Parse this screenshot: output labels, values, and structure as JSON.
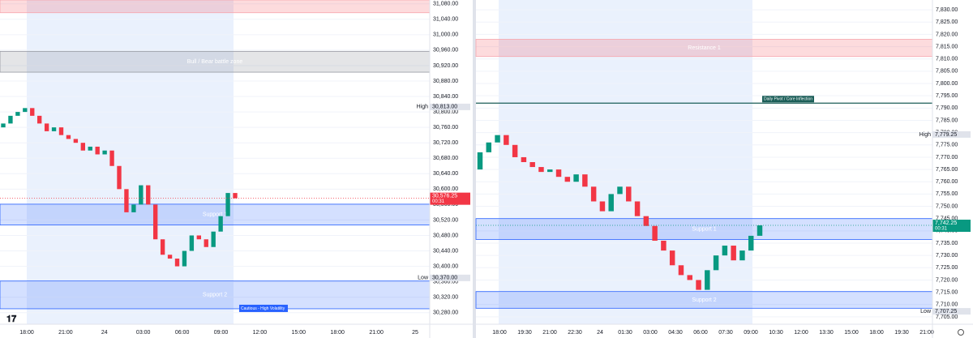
{
  "chart_data": [
    {
      "type": "candlestick",
      "ylim": [
        30250,
        31090
      ],
      "yticks": [
        {
          "value": 31080,
          "label": "31,080.00"
        },
        {
          "value": 31040,
          "label": "31,040.00"
        },
        {
          "value": 31000,
          "label": "31,000.00"
        },
        {
          "value": 30960,
          "label": "30,960.00"
        },
        {
          "value": 30920,
          "label": "30,920.00"
        },
        {
          "value": 30880,
          "label": "30,880.00"
        },
        {
          "value": 30840,
          "label": "30,840.00"
        },
        {
          "value": 30800,
          "label": "30,800.00"
        },
        {
          "value": 30760,
          "label": "30,760.00"
        },
        {
          "value": 30720,
          "label": "30,720.00"
        },
        {
          "value": 30680,
          "label": "30,680.00"
        },
        {
          "value": 30640,
          "label": "30,640.00"
        },
        {
          "value": 30600,
          "label": "30,600.00"
        },
        {
          "value": 30560,
          "label": "30,560.00"
        },
        {
          "value": 30520,
          "label": "30,520.00"
        },
        {
          "value": 30480,
          "label": "30,480.00"
        },
        {
          "value": 30440,
          "label": "30,440.00"
        },
        {
          "value": 30400,
          "label": "30,400.00"
        },
        {
          "value": 30360,
          "label": "30,360.00"
        },
        {
          "value": 30320,
          "label": "30,320.00"
        },
        {
          "value": 30280,
          "label": "30,280.00"
        }
      ],
      "x_labels": [
        "18:00",
        "21:00",
        "24",
        "03:00",
        "06:00",
        "09:00",
        "12:00",
        "15:00",
        "18:00",
        "21:00",
        "25"
      ],
      "open": [
        30760,
        30770,
        30790,
        30800,
        30810,
        30790,
        30770,
        30750,
        30760,
        30740,
        30730,
        30720,
        30700,
        30710,
        30690,
        30700,
        30660,
        30600,
        30540,
        30560,
        30610,
        30560,
        30470,
        30430,
        30420,
        30400,
        30440,
        30480,
        30470,
        30450,
        30490,
        30530,
        30590
      ],
      "high": {
        "label": "High",
        "value": 30813,
        "value_label": "30,813.00"
      },
      "low": {
        "label": "Low",
        "value": 30370,
        "value_label": "30,370.00"
      },
      "close": [
        30770,
        30790,
        30800,
        30810,
        30790,
        30770,
        30750,
        30760,
        30740,
        30730,
        30720,
        30700,
        30710,
        30690,
        30700,
        30660,
        30600,
        30540,
        30560,
        30610,
        30560,
        30470,
        30430,
        30420,
        30400,
        30440,
        30480,
        30470,
        30450,
        30490,
        30530,
        30590,
        30576.25
      ],
      "up_color": "#089981",
      "down_color": "#f23645",
      "zones": [
        {
          "range": [
            31057,
            31090
          ],
          "color": "red"
        },
        {
          "label": "Bull / Bear battle zone",
          "range": [
            30903,
            30957
          ],
          "color": "gray"
        },
        {
          "label": "Support 1",
          "range": [
            30507,
            30561
          ],
          "color": "blue"
        },
        {
          "label": "Support 2",
          "range": [
            30290,
            30362
          ],
          "color": "blue"
        }
      ],
      "annotation": {
        "label": "Cautious - High Volatility"
      },
      "last": {
        "value": 30576.25,
        "value_label": "30,576.25",
        "countdown": "00:31"
      }
    },
    {
      "type": "candlestick",
      "ylim": [
        7702,
        7834
      ],
      "yticks": [
        {
          "value": 7830,
          "label": "7,830.00"
        },
        {
          "value": 7825,
          "label": "7,825.00"
        },
        {
          "value": 7820,
          "label": "7,820.00"
        },
        {
          "value": 7815,
          "label": "7,815.00"
        },
        {
          "value": 7810,
          "label": "7,810.00"
        },
        {
          "value": 7805,
          "label": "7,805.00"
        },
        {
          "value": 7800,
          "label": "7,800.00"
        },
        {
          "value": 7795,
          "label": "7,795.00"
        },
        {
          "value": 7790,
          "label": "7,790.00"
        },
        {
          "value": 7785,
          "label": "7,785.00"
        },
        {
          "value": 7780,
          "label": "7,780.00"
        },
        {
          "value": 7775,
          "label": "7,775.00"
        },
        {
          "value": 7770,
          "label": "7,770.00"
        },
        {
          "value": 7765,
          "label": "7,765.00"
        },
        {
          "value": 7760,
          "label": "7,760.00"
        },
        {
          "value": 7755,
          "label": "7,755.00"
        },
        {
          "value": 7750,
          "label": "7,750.00"
        },
        {
          "value": 7745,
          "label": "7,745.00"
        },
        {
          "value": 7740,
          "label": "7,740.00"
        },
        {
          "value": 7735,
          "label": "7,735.00"
        },
        {
          "value": 7730,
          "label": "7,730.00"
        },
        {
          "value": 7725,
          "label": "7,725.00"
        },
        {
          "value": 7720,
          "label": "7,720.00"
        },
        {
          "value": 7715,
          "label": "7,715.00"
        },
        {
          "value": 7710,
          "label": "7,710.00"
        },
        {
          "value": 7705,
          "label": "7,705.00"
        }
      ],
      "x_labels": [
        "18:00",
        "19:30",
        "21:00",
        "22:30",
        "24",
        "01:30",
        "03:00",
        "04:30",
        "06:00",
        "07:30",
        "09:00",
        "10:30",
        "12:00",
        "13:30",
        "15:00",
        "18:00",
        "19:30",
        "21:00"
      ],
      "open": [
        7765,
        7772,
        7776,
        7779,
        7775,
        7770,
        7768,
        7766,
        7764,
        7765,
        7762,
        7760,
        7763,
        7758,
        7752,
        7748,
        7755,
        7758,
        7752,
        7746,
        7742,
        7736,
        7732,
        7726,
        7722,
        7720,
        7716,
        7724,
        7730,
        7734,
        7728,
        7732,
        7738
      ],
      "high": {
        "label": "High",
        "value": 7779.25,
        "value_label": "7,779.25"
      },
      "low": {
        "label": "Low",
        "value": 7707.25,
        "value_label": "7,707.25"
      },
      "close": [
        7772,
        7776,
        7779,
        7775,
        7770,
        7768,
        7766,
        7764,
        7765,
        7762,
        7760,
        7763,
        7758,
        7752,
        7748,
        7755,
        7758,
        7752,
        7746,
        7742,
        7736,
        7732,
        7726,
        7722,
        7720,
        7716,
        7724,
        7730,
        7734,
        7728,
        7732,
        7738,
        7742.25
      ],
      "up_color": "#089981",
      "down_color": "#f23645",
      "zones": [
        {
          "label": "Resistance 1",
          "range": [
            7811,
            7818
          ],
          "color": "red"
        },
        {
          "label": "Support 1",
          "range": [
            7736.5,
            7745
          ],
          "color": "blue"
        },
        {
          "label": "Support 2",
          "range": [
            7708.5,
            7715.3
          ],
          "color": "blue"
        }
      ],
      "pivot": {
        "label": "Daily Pivot / Core Inflection",
        "value": 7792
      },
      "last": {
        "value": 7742.25,
        "value_label": "7,742.25",
        "countdown": "00:31"
      }
    }
  ]
}
